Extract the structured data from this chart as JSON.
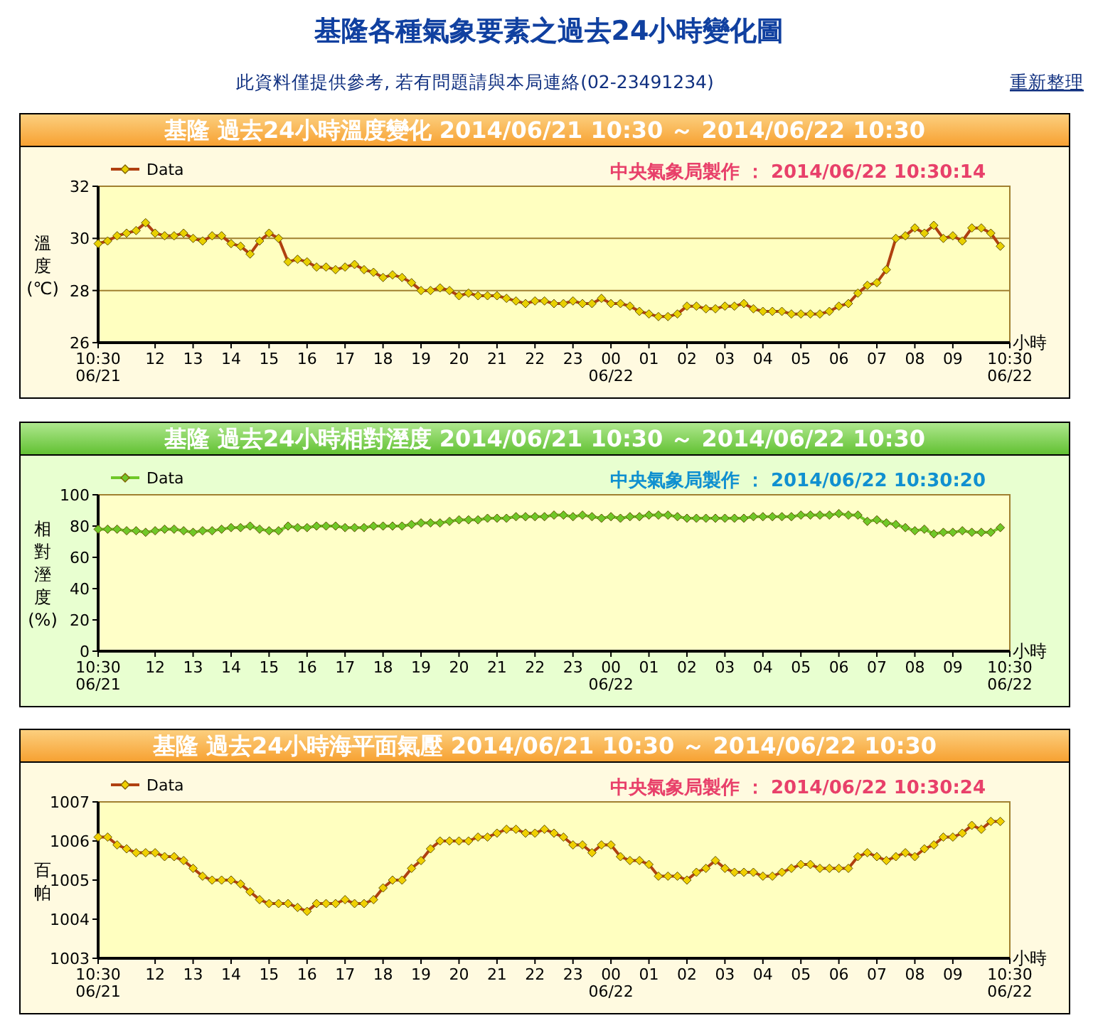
{
  "chart_data": [
    {
      "type": "line",
      "title": "基隆  過去24小時溫度變化  2014/06/21  10:30  ～  2014/06/22  10:30",
      "ylabel": "溫度(℃)",
      "xlabel": "小時",
      "x": [
        "2014-06-21T10:30",
        "2014-06-21T10:45",
        "2014-06-21T11:00",
        "2014-06-21T11:15",
        "2014-06-21T11:30",
        "2014-06-21T11:45",
        "2014-06-21T12:00",
        "2014-06-21T12:15",
        "2014-06-21T12:30",
        "2014-06-21T12:45",
        "2014-06-21T13:00",
        "2014-06-21T13:15",
        "2014-06-21T13:30",
        "2014-06-21T13:45",
        "2014-06-21T14:00",
        "2014-06-21T14:15",
        "2014-06-21T14:30",
        "2014-06-21T14:45",
        "2014-06-21T15:00",
        "2014-06-21T15:15",
        "2014-06-21T15:30",
        "2014-06-21T15:45",
        "2014-06-21T16:00",
        "2014-06-21T16:15",
        "2014-06-21T16:30",
        "2014-06-21T16:45",
        "2014-06-21T17:00",
        "2014-06-21T17:15",
        "2014-06-21T17:30",
        "2014-06-21T17:45",
        "2014-06-21T18:00",
        "2014-06-21T18:15",
        "2014-06-21T18:30",
        "2014-06-21T18:45",
        "2014-06-21T19:00",
        "2014-06-21T19:15",
        "2014-06-21T19:30",
        "2014-06-21T19:45",
        "2014-06-21T20:00",
        "2014-06-21T20:15",
        "2014-06-21T20:30",
        "2014-06-21T20:45",
        "2014-06-21T21:00",
        "2014-06-21T21:15",
        "2014-06-21T21:30",
        "2014-06-21T21:45",
        "2014-06-21T22:00",
        "2014-06-21T22:15",
        "2014-06-21T22:30",
        "2014-06-21T22:45",
        "2014-06-21T23:00",
        "2014-06-21T23:15",
        "2014-06-21T23:30",
        "2014-06-21T23:45",
        "2014-06-22T00:00",
        "2014-06-22T00:15",
        "2014-06-22T00:30",
        "2014-06-22T00:45",
        "2014-06-22T01:00",
        "2014-06-22T01:15",
        "2014-06-22T01:30",
        "2014-06-22T01:45",
        "2014-06-22T02:00",
        "2014-06-22T02:15",
        "2014-06-22T02:30",
        "2014-06-22T02:45",
        "2014-06-22T03:00",
        "2014-06-22T03:15",
        "2014-06-22T03:30",
        "2014-06-22T03:45",
        "2014-06-22T04:00",
        "2014-06-22T04:15",
        "2014-06-22T04:30",
        "2014-06-22T04:45",
        "2014-06-22T05:00",
        "2014-06-22T05:15",
        "2014-06-22T05:30",
        "2014-06-22T05:45",
        "2014-06-22T06:00",
        "2014-06-22T06:15",
        "2014-06-22T06:30",
        "2014-06-22T06:45",
        "2014-06-22T07:00",
        "2014-06-22T07:15",
        "2014-06-22T07:30",
        "2014-06-22T07:45",
        "2014-06-22T08:00",
        "2014-06-22T08:15",
        "2014-06-22T08:30",
        "2014-06-22T08:45",
        "2014-06-22T09:00",
        "2014-06-22T09:15",
        "2014-06-22T09:30",
        "2014-06-22T09:45",
        "2014-06-22T10:00",
        "2014-06-22T10:15"
      ],
      "annotations": [
        "基隆各種氣象要素之過去24小時變化圖",
        "此資料僅提供參考, 若有問題請與本局連絡(02-23491234)",
        "重新整理",
        "中央氣象局製作  ：  2014/06/22  10:30:14"
      ],
      "xlim": [
        "2014-06-21T10:30",
        "2014-06-22T10:30"
      ],
      "xticks": [
        {
          "value": "2014-06-21T10:30",
          "label": "10:30\n06/21"
        },
        {
          "value": "2014-06-21T12:00",
          "label": "12"
        },
        {
          "value": "2014-06-21T13:00",
          "label": "13"
        },
        {
          "value": "2014-06-21T14:00",
          "label": "14"
        },
        {
          "value": "2014-06-21T15:00",
          "label": "15"
        },
        {
          "value": "2014-06-21T16:00",
          "label": "16"
        },
        {
          "value": "2014-06-21T17:00",
          "label": "17"
        },
        {
          "value": "2014-06-21T18:00",
          "label": "18"
        },
        {
          "value": "2014-06-21T19:00",
          "label": "19"
        },
        {
          "value": "2014-06-21T20:00",
          "label": "20"
        },
        {
          "value": "2014-06-21T21:00",
          "label": "21"
        },
        {
          "value": "2014-06-21T22:00",
          "label": "22"
        },
        {
          "value": "2014-06-21T23:00",
          "label": "23"
        },
        {
          "value": "2014-06-22T00:00",
          "label": "00\n06/22"
        },
        {
          "value": "2014-06-22T01:00",
          "label": "01"
        },
        {
          "value": "2014-06-22T02:00",
          "label": "02"
        },
        {
          "value": "2014-06-22T03:00",
          "label": "03"
        },
        {
          "value": "2014-06-22T04:00",
          "label": "04"
        },
        {
          "value": "2014-06-22T05:00",
          "label": "05"
        },
        {
          "value": "2014-06-22T06:00",
          "label": "06"
        },
        {
          "value": "2014-06-22T07:00",
          "label": "07"
        },
        {
          "value": "2014-06-22T08:00",
          "label": "08"
        },
        {
          "value": "2014-06-22T09:00",
          "label": "09"
        },
        {
          "value": "2014-06-22T10:30",
          "label": "10:30\n06/22"
        }
      ],
      "ylim": [
        26,
        32
      ],
      "yticks": [
        26,
        28,
        30,
        32
      ],
      "grid": "y",
      "legend": "top left",
      "marker": "diamond",
      "line_style": "solid",
      "series": [
        {
          "name": "Data",
          "color": "#e8d000",
          "values": [
            29.8,
            29.9,
            30.1,
            30.2,
            30.3,
            30.6,
            30.2,
            30.1,
            30.1,
            30.2,
            30.0,
            29.9,
            30.1,
            30.1,
            29.8,
            29.7,
            29.4,
            29.9,
            30.2,
            30.0,
            29.1,
            29.2,
            29.1,
            28.9,
            28.9,
            28.8,
            28.9,
            29.0,
            28.8,
            28.7,
            28.5,
            28.6,
            28.5,
            28.3,
            28.0,
            28.0,
            28.1,
            28.0,
            27.8,
            27.9,
            27.8,
            27.8,
            27.8,
            27.7,
            27.6,
            27.5,
            27.6,
            27.6,
            27.5,
            27.5,
            27.6,
            27.5,
            27.5,
            27.7,
            27.5,
            27.5,
            27.4,
            27.2,
            27.1,
            27.0,
            27.0,
            27.1,
            27.4,
            27.4,
            27.3,
            27.3,
            27.4,
            27.4,
            27.5,
            27.3,
            27.2,
            27.2,
            27.2,
            27.1,
            27.1,
            27.1,
            27.1,
            27.2,
            27.4,
            27.5,
            27.9,
            28.2,
            28.3,
            28.8,
            30.0,
            30.1,
            30.4,
            30.2,
            30.5,
            30.0,
            30.1,
            29.9,
            30.4,
            30.4,
            30.2,
            29.7
          ]
        }
      ]
    },
    {
      "type": "line",
      "title": "基隆  過去24小時相對溼度  2014/06/21  10:30  ～  2014/06/22  10:30",
      "ylabel": "相對溼度(%)",
      "xlabel": "小時",
      "x": [
        "2014-06-21T10:30",
        "2014-06-21T10:45",
        "2014-06-21T11:00",
        "2014-06-21T11:15",
        "2014-06-21T11:30",
        "2014-06-21T11:45",
        "2014-06-21T12:00",
        "2014-06-21T12:15",
        "2014-06-21T12:30",
        "2014-06-21T12:45",
        "2014-06-21T13:00",
        "2014-06-21T13:15",
        "2014-06-21T13:30",
        "2014-06-21T13:45",
        "2014-06-21T14:00",
        "2014-06-21T14:15",
        "2014-06-21T14:30",
        "2014-06-21T14:45",
        "2014-06-21T15:00",
        "2014-06-21T15:15",
        "2014-06-21T15:30",
        "2014-06-21T15:45",
        "2014-06-21T16:00",
        "2014-06-21T16:15",
        "2014-06-21T16:30",
        "2014-06-21T16:45",
        "2014-06-21T17:00",
        "2014-06-21T17:15",
        "2014-06-21T17:30",
        "2014-06-21T17:45",
        "2014-06-21T18:00",
        "2014-06-21T18:15",
        "2014-06-21T18:30",
        "2014-06-21T18:45",
        "2014-06-21T19:00",
        "2014-06-21T19:15",
        "2014-06-21T19:30",
        "2014-06-21T19:45",
        "2014-06-21T20:00",
        "2014-06-21T20:15",
        "2014-06-21T20:30",
        "2014-06-21T20:45",
        "2014-06-21T21:00",
        "2014-06-21T21:15",
        "2014-06-21T21:30",
        "2014-06-21T21:45",
        "2014-06-21T22:00",
        "2014-06-21T22:15",
        "2014-06-21T22:30",
        "2014-06-21T22:45",
        "2014-06-21T23:00",
        "2014-06-21T23:15",
        "2014-06-21T23:30",
        "2014-06-21T23:45",
        "2014-06-22T00:00",
        "2014-06-22T00:15",
        "2014-06-22T00:30",
        "2014-06-22T00:45",
        "2014-06-22T01:00",
        "2014-06-22T01:15",
        "2014-06-22T01:30",
        "2014-06-22T01:45",
        "2014-06-22T02:00",
        "2014-06-22T02:15",
        "2014-06-22T02:30",
        "2014-06-22T02:45",
        "2014-06-22T03:00",
        "2014-06-22T03:15",
        "2014-06-22T03:30",
        "2014-06-22T03:45",
        "2014-06-22T04:00",
        "2014-06-22T04:15",
        "2014-06-22T04:30",
        "2014-06-22T04:45",
        "2014-06-22T05:00",
        "2014-06-22T05:15",
        "2014-06-22T05:30",
        "2014-06-22T05:45",
        "2014-06-22T06:00",
        "2014-06-22T06:15",
        "2014-06-22T06:30",
        "2014-06-22T06:45",
        "2014-06-22T07:00",
        "2014-06-22T07:15",
        "2014-06-22T07:30",
        "2014-06-22T07:45",
        "2014-06-22T08:00",
        "2014-06-22T08:15",
        "2014-06-22T08:30",
        "2014-06-22T08:45",
        "2014-06-22T09:00",
        "2014-06-22T09:15",
        "2014-06-22T09:30",
        "2014-06-22T09:45",
        "2014-06-22T10:00",
        "2014-06-22T10:15"
      ],
      "annotations": [
        "中央氣象局製作  ：  2014/06/22  10:30:20"
      ],
      "xlim": [
        "2014-06-21T10:30",
        "2014-06-22T10:30"
      ],
      "xticks": [
        {
          "value": "2014-06-21T10:30",
          "label": "10:30\n06/21"
        },
        {
          "value": "2014-06-21T12:00",
          "label": "12"
        },
        {
          "value": "2014-06-21T13:00",
          "label": "13"
        },
        {
          "value": "2014-06-21T14:00",
          "label": "14"
        },
        {
          "value": "2014-06-21T15:00",
          "label": "15"
        },
        {
          "value": "2014-06-21T16:00",
          "label": "16"
        },
        {
          "value": "2014-06-21T17:00",
          "label": "17"
        },
        {
          "value": "2014-06-21T18:00",
          "label": "18"
        },
        {
          "value": "2014-06-21T19:00",
          "label": "19"
        },
        {
          "value": "2014-06-21T20:00",
          "label": "20"
        },
        {
          "value": "2014-06-21T21:00",
          "label": "21"
        },
        {
          "value": "2014-06-21T22:00",
          "label": "22"
        },
        {
          "value": "2014-06-21T23:00",
          "label": "23"
        },
        {
          "value": "2014-06-22T00:00",
          "label": "00\n06/22"
        },
        {
          "value": "2014-06-22T01:00",
          "label": "01"
        },
        {
          "value": "2014-06-22T02:00",
          "label": "02"
        },
        {
          "value": "2014-06-22T03:00",
          "label": "03"
        },
        {
          "value": "2014-06-22T04:00",
          "label": "04"
        },
        {
          "value": "2014-06-22T05:00",
          "label": "05"
        },
        {
          "value": "2014-06-22T06:00",
          "label": "06"
        },
        {
          "value": "2014-06-22T07:00",
          "label": "07"
        },
        {
          "value": "2014-06-22T08:00",
          "label": "08"
        },
        {
          "value": "2014-06-22T09:00",
          "label": "09"
        },
        {
          "value": "2014-06-22T10:30",
          "label": "10:30\n06/22"
        }
      ],
      "ylim": [
        0,
        100
      ],
      "yticks": [
        0,
        20,
        40,
        60,
        80,
        100
      ],
      "legend": "top left",
      "marker": "diamond",
      "line_style": "solid",
      "series": [
        {
          "name": "Data",
          "color": "#70c828",
          "values": [
            78,
            78,
            78,
            77,
            77,
            76,
            77,
            78,
            78,
            77,
            76,
            77,
            77,
            78,
            79,
            79,
            80,
            78,
            77,
            77,
            80,
            79,
            79,
            80,
            80,
            80,
            79,
            79,
            79,
            80,
            80,
            80,
            80,
            81,
            82,
            82,
            82,
            83,
            84,
            84,
            84,
            85,
            85,
            85,
            86,
            86,
            86,
            86,
            87,
            87,
            86,
            87,
            86,
            85,
            86,
            85,
            86,
            86,
            87,
            87,
            87,
            86,
            85,
            85,
            85,
            85,
            85,
            85,
            85,
            86,
            86,
            86,
            86,
            86,
            87,
            87,
            87,
            87,
            88,
            87,
            87,
            83,
            84,
            82,
            81,
            79,
            77,
            78,
            75,
            76,
            76,
            77,
            76,
            76,
            76,
            79
          ]
        }
      ]
    },
    {
      "type": "line",
      "title": "基隆  過去24小時海平面氣壓  2014/06/21  10:30  ～  2014/06/22  10:30",
      "ylabel": "百帕",
      "xlabel": "小時",
      "x": [
        "2014-06-21T10:30",
        "2014-06-21T10:45",
        "2014-06-21T11:00",
        "2014-06-21T11:15",
        "2014-06-21T11:30",
        "2014-06-21T11:45",
        "2014-06-21T12:00",
        "2014-06-21T12:15",
        "2014-06-21T12:30",
        "2014-06-21T12:45",
        "2014-06-21T13:00",
        "2014-06-21T13:15",
        "2014-06-21T13:30",
        "2014-06-21T13:45",
        "2014-06-21T14:00",
        "2014-06-21T14:15",
        "2014-06-21T14:30",
        "2014-06-21T14:45",
        "2014-06-21T15:00",
        "2014-06-21T15:15",
        "2014-06-21T15:30",
        "2014-06-21T15:45",
        "2014-06-21T16:00",
        "2014-06-21T16:15",
        "2014-06-21T16:30",
        "2014-06-21T16:45",
        "2014-06-21T17:00",
        "2014-06-21T17:15",
        "2014-06-21T17:30",
        "2014-06-21T17:45",
        "2014-06-21T18:00",
        "2014-06-21T18:15",
        "2014-06-21T18:30",
        "2014-06-21T18:45",
        "2014-06-21T19:00",
        "2014-06-21T19:15",
        "2014-06-21T19:30",
        "2014-06-21T19:45",
        "2014-06-21T20:00",
        "2014-06-21T20:15",
        "2014-06-21T20:30",
        "2014-06-21T20:45",
        "2014-06-21T21:00",
        "2014-06-21T21:15",
        "2014-06-21T21:30",
        "2014-06-21T21:45",
        "2014-06-21T22:00",
        "2014-06-21T22:15",
        "2014-06-21T22:30",
        "2014-06-21T22:45",
        "2014-06-21T23:00",
        "2014-06-21T23:15",
        "2014-06-21T23:30",
        "2014-06-21T23:45",
        "2014-06-22T00:00",
        "2014-06-22T00:15",
        "2014-06-22T00:30",
        "2014-06-22T00:45",
        "2014-06-22T01:00",
        "2014-06-22T01:15",
        "2014-06-22T01:30",
        "2014-06-22T01:45",
        "2014-06-22T02:00",
        "2014-06-22T02:15",
        "2014-06-22T02:30",
        "2014-06-22T02:45",
        "2014-06-22T03:00",
        "2014-06-22T03:15",
        "2014-06-22T03:30",
        "2014-06-22T03:45",
        "2014-06-22T04:00",
        "2014-06-22T04:15",
        "2014-06-22T04:30",
        "2014-06-22T04:45",
        "2014-06-22T05:00",
        "2014-06-22T05:15",
        "2014-06-22T05:30",
        "2014-06-22T05:45",
        "2014-06-22T06:00",
        "2014-06-22T06:15",
        "2014-06-22T06:30",
        "2014-06-22T06:45",
        "2014-06-22T07:00",
        "2014-06-22T07:15",
        "2014-06-22T07:30",
        "2014-06-22T07:45",
        "2014-06-22T08:00",
        "2014-06-22T08:15",
        "2014-06-22T08:30",
        "2014-06-22T08:45",
        "2014-06-22T09:00",
        "2014-06-22T09:15",
        "2014-06-22T09:30",
        "2014-06-22T09:45",
        "2014-06-22T10:00",
        "2014-06-22T10:15"
      ],
      "annotations": [
        "中央氣象局製作  ：  2014/06/22  10:30:24"
      ],
      "xlim": [
        "2014-06-21T10:30",
        "2014-06-22T10:30"
      ],
      "xticks": [
        {
          "value": "2014-06-21T10:30",
          "label": "10:30\n06/21"
        },
        {
          "value": "2014-06-21T12:00",
          "label": "12"
        },
        {
          "value": "2014-06-21T13:00",
          "label": "13"
        },
        {
          "value": "2014-06-21T14:00",
          "label": "14"
        },
        {
          "value": "2014-06-21T15:00",
          "label": "15"
        },
        {
          "value": "2014-06-21T16:00",
          "label": "16"
        },
        {
          "value": "2014-06-21T17:00",
          "label": "17"
        },
        {
          "value": "2014-06-21T18:00",
          "label": "18"
        },
        {
          "value": "2014-06-21T19:00",
          "label": "19"
        },
        {
          "value": "2014-06-21T20:00",
          "label": "20"
        },
        {
          "value": "2014-06-21T21:00",
          "label": "21"
        },
        {
          "value": "2014-06-21T22:00",
          "label": "22"
        },
        {
          "value": "2014-06-21T23:00",
          "label": "23"
        },
        {
          "value": "2014-06-22T00:00",
          "label": "00\n06/22"
        },
        {
          "value": "2014-06-22T01:00",
          "label": "01"
        },
        {
          "value": "2014-06-22T02:00",
          "label": "02"
        },
        {
          "value": "2014-06-22T03:00",
          "label": "03"
        },
        {
          "value": "2014-06-22T04:00",
          "label": "04"
        },
        {
          "value": "2014-06-22T05:00",
          "label": "05"
        },
        {
          "value": "2014-06-22T06:00",
          "label": "06"
        },
        {
          "value": "2014-06-22T07:00",
          "label": "07"
        },
        {
          "value": "2014-06-22T08:00",
          "label": "08"
        },
        {
          "value": "2014-06-22T09:00",
          "label": "09"
        },
        {
          "value": "2014-06-22T10:30",
          "label": "10:30\n06/22"
        }
      ],
      "ylim": [
        1003,
        1007
      ],
      "yticks": [
        1003,
        1004,
        1005,
        1006,
        1007
      ],
      "legend": "top left",
      "marker": "diamond",
      "line_style": "solid",
      "series": [
        {
          "name": "Data",
          "color": "#f0d000",
          "values": [
            1006.1,
            1006.1,
            1005.9,
            1005.8,
            1005.7,
            1005.7,
            1005.7,
            1005.6,
            1005.6,
            1005.5,
            1005.3,
            1005.1,
            1005.0,
            1005.0,
            1005.0,
            1004.9,
            1004.7,
            1004.5,
            1004.4,
            1004.4,
            1004.4,
            1004.3,
            1004.2,
            1004.4,
            1004.4,
            1004.4,
            1004.5,
            1004.4,
            1004.4,
            1004.5,
            1004.8,
            1005.0,
            1005.0,
            1005.3,
            1005.5,
            1005.8,
            1006.0,
            1006.0,
            1006.0,
            1006.0,
            1006.1,
            1006.1,
            1006.2,
            1006.3,
            1006.3,
            1006.2,
            1006.2,
            1006.3,
            1006.2,
            1006.1,
            1005.9,
            1005.9,
            1005.7,
            1005.9,
            1005.9,
            1005.6,
            1005.5,
            1005.5,
            1005.4,
            1005.1,
            1005.1,
            1005.1,
            1005.0,
            1005.2,
            1005.3,
            1005.5,
            1005.3,
            1005.2,
            1005.2,
            1005.2,
            1005.1,
            1005.1,
            1005.2,
            1005.3,
            1005.4,
            1005.4,
            1005.3,
            1005.3,
            1005.3,
            1005.3,
            1005.6,
            1005.7,
            1005.6,
            1005.5,
            1005.6,
            1005.7,
            1005.6,
            1005.8,
            1005.9,
            1006.1,
            1006.1,
            1006.2,
            1006.4,
            1006.3,
            1006.5,
            1006.5
          ]
        }
      ]
    }
  ]
}
